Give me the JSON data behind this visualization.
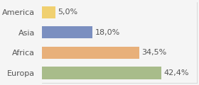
{
  "categories": [
    "America",
    "Asia",
    "Africa",
    "Europa"
  ],
  "values": [
    5.0,
    18.0,
    34.5,
    42.4
  ],
  "labels": [
    "5,0%",
    "18,0%",
    "34,5%",
    "42,4%"
  ],
  "bar_colors": [
    "#f0d070",
    "#7b8fc0",
    "#e8b07a",
    "#a8bc8a"
  ],
  "background_color": "#f5f5f5",
  "xlim": [
    0,
    55
  ],
  "bar_height": 0.6,
  "label_fontsize": 8,
  "tick_fontsize": 8
}
